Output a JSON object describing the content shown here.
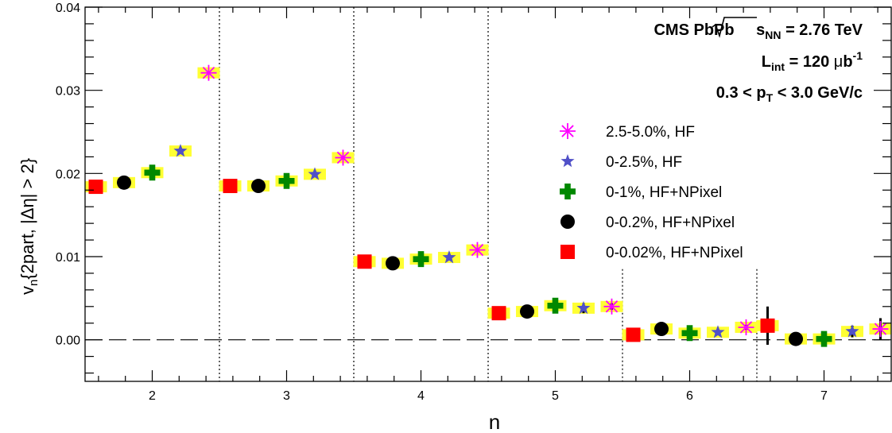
{
  "chart_data": {
    "type": "scatter",
    "xlabel": "n",
    "ylabel_parts": [
      "v",
      "n",
      "{2part, |Δη| > 2}"
    ],
    "xlim": [
      1.5,
      7.5
    ],
    "ylim": [
      -0.005,
      0.04
    ],
    "x_ticks": [
      2,
      3,
      4,
      5,
      6,
      7
    ],
    "y_ticks": [
      0.0,
      0.01,
      0.02,
      0.03,
      0.04
    ],
    "y_tick_labels": [
      "0.00",
      "0.01",
      "0.02",
      "0.03",
      "0.04"
    ],
    "zero_line": true,
    "dividers": [
      2.5,
      3.5,
      4.5,
      5.5,
      6.5
    ],
    "legend_position": "right",
    "annotations": {
      "line1": {
        "a": "CMS PbPb ",
        "b": "s",
        "c": "NN",
        "d": " = 2.76 TeV"
      },
      "line2": {
        "a": "L",
        "b": "int",
        "c": " = 120 ",
        "d": "μ",
        "e": "b",
        "f": "-1"
      },
      "line3": {
        "a": "0.3 < p",
        "b": "T",
        "c": " < 3.0 GeV/c"
      }
    },
    "series": [
      {
        "name": "0-0.02%, HF+NPixel",
        "marker": "square",
        "color": "#ff0000",
        "x": [
          1.58,
          2.58,
          3.58,
          4.58,
          5.58,
          6.58
        ],
        "y": [
          0.0184,
          0.0185,
          0.0094,
          0.0032,
          0.0006,
          0.0017
        ],
        "err": [
          0.0003,
          0.0003,
          0.0003,
          0.0003,
          0.0005,
          0.0023
        ]
      },
      {
        "name": "0-0.2%, HF+NPixel",
        "marker": "circle",
        "color": "#000000",
        "x": [
          1.79,
          2.79,
          3.79,
          4.79,
          5.79,
          6.79
        ],
        "y": [
          0.0189,
          0.0185,
          0.0092,
          0.0034,
          0.0013,
          0.0001
        ],
        "err": [
          0.0002,
          0.0002,
          0.0002,
          0.0002,
          0.0002,
          0.0004
        ]
      },
      {
        "name": "0-1%, HF+NPixel",
        "marker": "cross",
        "color": "#008800",
        "x": [
          2.0,
          3.0,
          4.0,
          5.0,
          6.0,
          7.0
        ],
        "y": [
          0.0201,
          0.0191,
          0.0097,
          0.0041,
          0.0008,
          0.0001
        ],
        "err": [
          0.0002,
          0.0002,
          0.0002,
          0.0005,
          0.0003,
          0.0005
        ]
      },
      {
        "name": "0-2.5%, HF",
        "marker": "star",
        "color": "#5050c8",
        "x": [
          2.21,
          3.21,
          4.21,
          5.21,
          6.21,
          7.21
        ],
        "y": [
          0.0227,
          0.0199,
          0.0099,
          0.0038,
          0.0009,
          0.001
        ],
        "err": [
          0.0002,
          0.0002,
          0.0002,
          0.0006,
          0.0003,
          0.0007
        ]
      },
      {
        "name": "2.5-5.0%, HF",
        "marker": "asterisk",
        "color": "#ff00ff",
        "x": [
          2.42,
          3.42,
          4.42,
          5.42,
          6.42,
          7.42
        ],
        "y": [
          0.0321,
          0.0219,
          0.0108,
          0.004,
          0.0015,
          0.0013
        ],
        "err": [
          0.0002,
          0.0002,
          0.0002,
          0.0004,
          0.0003,
          0.0013
        ]
      }
    ],
    "legend_order": [
      4,
      3,
      2,
      1,
      0
    ]
  }
}
